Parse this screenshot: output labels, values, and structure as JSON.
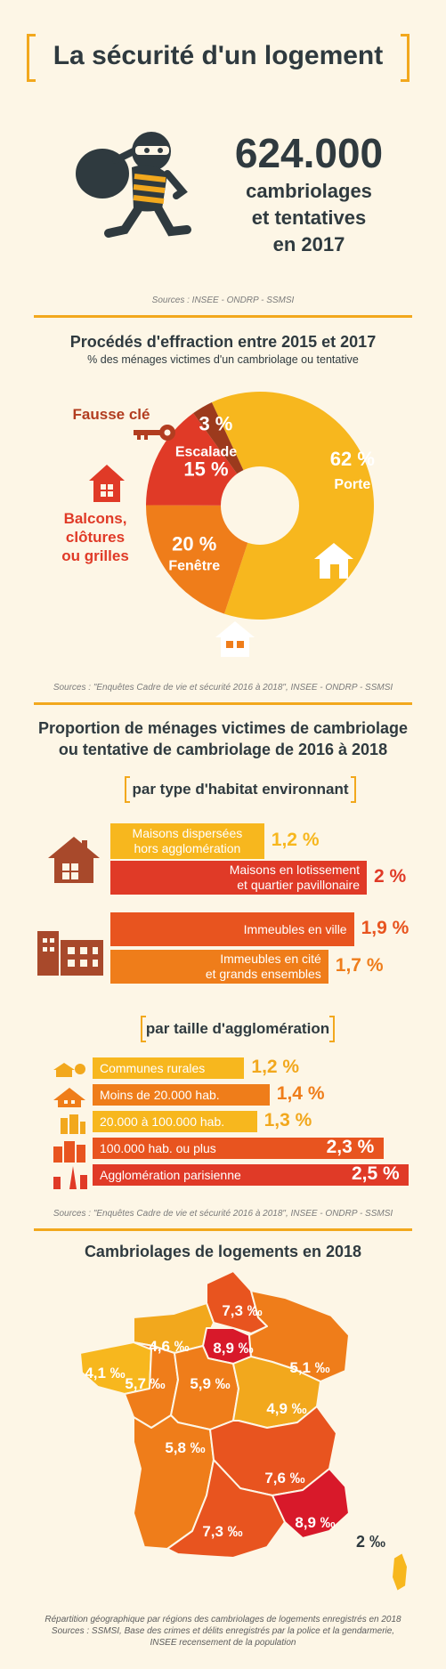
{
  "title": "La sécurité d'un logement",
  "intro": {
    "number": "624.000",
    "lines": [
      "cambriolages",
      "et tentatives",
      "en 2017"
    ],
    "source": "Sources : INSEE - ONDRP - SSMSI"
  },
  "section1": {
    "title": "Procédés d'effraction entre 2015 et 2017",
    "subtitle": "% des ménages victimes d'un cambriolage ou tentative",
    "source": "Sources : \"Enquêtes Cadre de vie et sécurité 2016 à 2018\", INSEE - ONDRP - SSMSI",
    "outer_labels": {
      "fausse_cle": "Fausse clé",
      "balcons": [
        "Balcons,",
        "clôtures",
        "ou grilles"
      ]
    }
  },
  "section2": {
    "title_line1": "Proportion de ménages victimes de cambriolage",
    "title_line2": "ou tentative de cambriolage de 2016 à 2018",
    "group1_title": "par type d'habitat environnant",
    "group2_title": "par taille d'agglomération",
    "source": "Sources : \"Enquêtes Cadre de vie et sécurité 2016 à 2018\", INSEE - ONDRP - SSMSI"
  },
  "section3": {
    "title": "Cambriolages de logements en 2018",
    "corsica_value": "2 ‰",
    "footnote": [
      "Répartition géographique par régions des cambriolages de logements enregistrés en 2018",
      "Sources : SSMSI, Base des crimes et délits enregistrés par la police et la gendarmerie,",
      "INSEE recensement de la population"
    ]
  },
  "colors": {
    "yellow": "#f7b71e",
    "orange": "#ef7d1a",
    "red": "#e03a27",
    "darkred": "#b23d20",
    "brown": "#a8492b",
    "accent": "#f2a81d"
  },
  "chart_data": [
    {
      "type": "pie",
      "title": "Procédés d'effraction entre 2015 et 2017",
      "subtitle": "% des ménages victimes d'un cambriolage ou tentative",
      "slices": [
        {
          "name": "Porte",
          "value": 62,
          "label": "62 %",
          "color": "#f7b71e"
        },
        {
          "name": "Fenêtre",
          "value": 20,
          "label": "20 %",
          "color": "#ef7d1a"
        },
        {
          "name": "Escalade",
          "value": 15,
          "label": "15 %",
          "color": "#e03a27"
        },
        {
          "name": "",
          "value": 3,
          "label": "3 %",
          "color": "#9c3a1d"
        }
      ]
    },
    {
      "type": "bar",
      "title": "par type d'habitat environnant",
      "categories": [
        "Maisons dispersées hors agglomération",
        "Maisons en lotissement et quartier pavillonaire",
        "Immeubles en ville",
        "Immeubles en cité et grands ensembles"
      ],
      "category_lines": [
        [
          "Maisons dispersées",
          "hors agglomération"
        ],
        [
          "Maisons en lotissement",
          "et quartier pavillonaire"
        ],
        [
          "Immeubles en ville"
        ],
        [
          "Immeubles en cité",
          "et grands ensembles"
        ]
      ],
      "values": [
        1.2,
        2.0,
        1.9,
        1.7
      ],
      "value_labels": [
        "1,2 %",
        "2 %",
        "1,9 %",
        "1,7 %"
      ],
      "colors": [
        "#f7b71e",
        "#e03a27",
        "#e8541f",
        "#ef7d1a"
      ]
    },
    {
      "type": "bar",
      "title": "par taille d'agglomération",
      "categories": [
        "Communes rurales",
        "Moins de 20.000 hab.",
        "20.000 à 100.000 hab.",
        "100.000 hab. ou plus",
        "Agglomération parisienne"
      ],
      "values": [
        1.2,
        1.4,
        1.3,
        2.3,
        2.5
      ],
      "value_labels": [
        "1,2 %",
        "1,4 %",
        "1,3 %",
        "2,3 %",
        "2,5 %"
      ],
      "colors": [
        "#f7b71e",
        "#ef7d1a",
        "#f7b71e",
        "#e8541f",
        "#e03a27"
      ]
    },
    {
      "type": "map",
      "title": "Cambriolages de logements en 2018",
      "regions": [
        {
          "label": "7,3 ‰",
          "value": 7.3,
          "color": "#e8541f"
        },
        {
          "label": "4,6 ‰",
          "value": 4.6,
          "color": "#f2a81d"
        },
        {
          "label": "8,9 ‰",
          "value": 8.9,
          "color": "#d8192a"
        },
        {
          "label": "5,1 ‰",
          "value": 5.1,
          "color": "#ef7d1a"
        },
        {
          "label": "4,1 ‰",
          "value": 4.1,
          "color": "#f7b71e"
        },
        {
          "label": "5,7 ‰",
          "value": 5.7,
          "color": "#ef7d1a"
        },
        {
          "label": "5,9 ‰",
          "value": 5.9,
          "color": "#ef7d1a"
        },
        {
          "label": "4,9 ‰",
          "value": 4.9,
          "color": "#f2a81d"
        },
        {
          "label": "5,8 ‰",
          "value": 5.8,
          "color": "#ef7d1a"
        },
        {
          "label": "7,6 ‰",
          "value": 7.6,
          "color": "#e8541f"
        },
        {
          "label": "7,3 ‰",
          "value": 7.3,
          "color": "#e8541f"
        },
        {
          "label": "8,9 ‰",
          "value": 8.9,
          "color": "#d8192a"
        },
        {
          "label": "2 ‰",
          "value": 2.0,
          "color": "#f7b71e"
        }
      ]
    }
  ]
}
